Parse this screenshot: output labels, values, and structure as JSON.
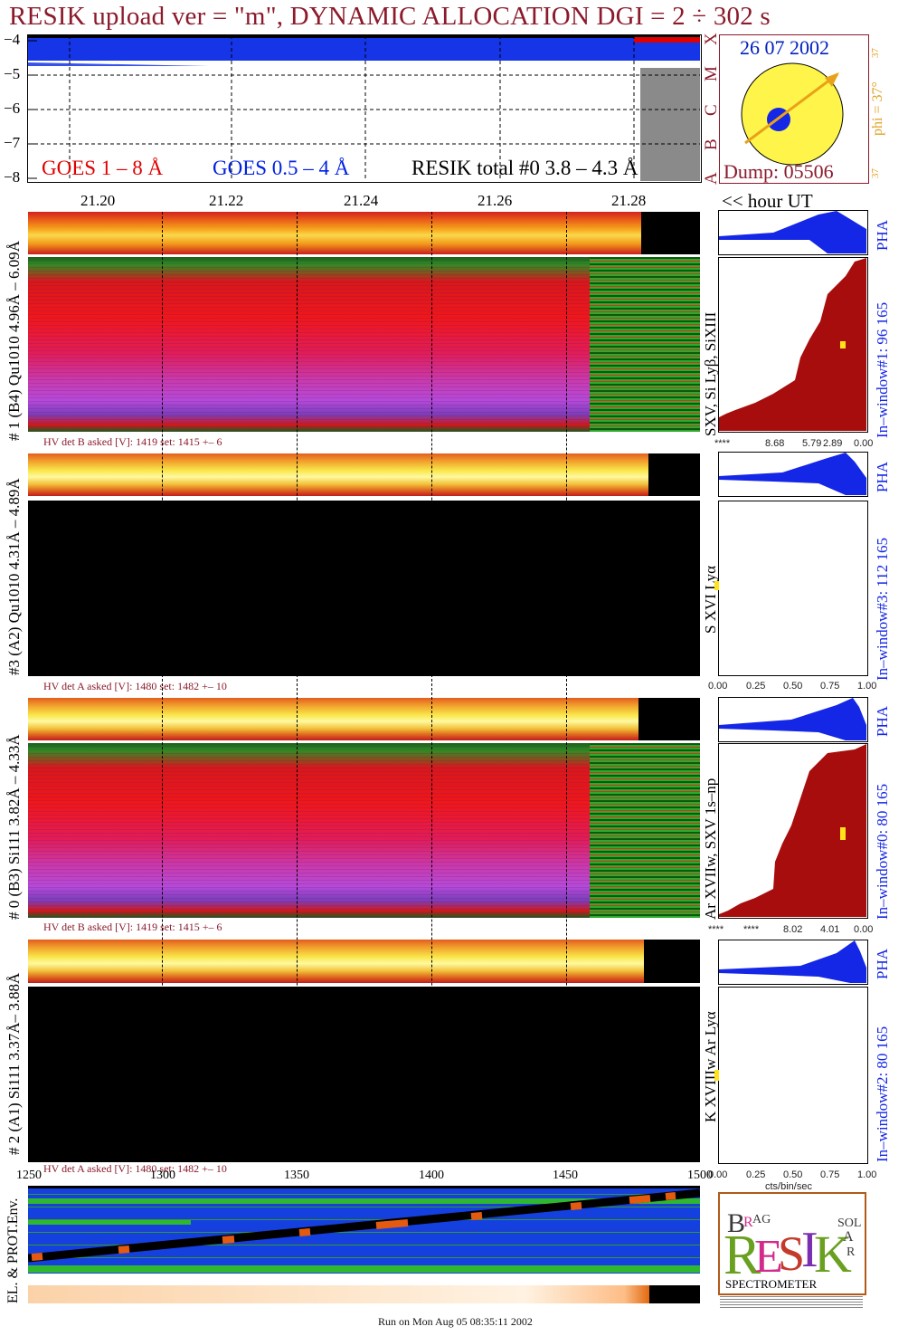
{
  "title": "RESIK upload ver = \"m\", DYNAMIC ALLOCATION  DGI =   2 ÷ 302 s",
  "top_panel": {
    "yticks": [
      "−4",
      "−5",
      "−6",
      "−7",
      "−8"
    ],
    "legend_goes1": "GOES 1 – 8 Å",
    "legend_goes05": "GOES 0.5 – 4 Å",
    "legend_resik": "RESIK total #0  3.8 – 4.3 Å",
    "flare_classes": [
      "X",
      "M",
      "C",
      "B",
      "A"
    ],
    "colors": {
      "goes1": "#e00000",
      "goes05": "#0020e0",
      "resik": "#000000"
    }
  },
  "sun_panel": {
    "date": "26 07 2002",
    "dump": "Dump: 05506",
    "phi_label": "phi = 37°",
    "phi_top": "37",
    "phi_bottom": "37"
  },
  "time_axis": {
    "ticks": [
      "21.20",
      "21.22",
      "21.24",
      "21.26",
      "21.28"
    ],
    "unit_label": "<< hour UT"
  },
  "channels": [
    {
      "label": "# 1 (B4) Qu1010 4.96Å – 6.09Å",
      "lines": "SXV, Si Lyβ, SiXIII",
      "hv": "HV det B asked [V]:  1419 set:  1415 +–   6",
      "pha": "PHA",
      "window": "In–window#1:  96 165",
      "xticks": [
        "****",
        "8.68",
        "5.79",
        "2.89",
        "0.00"
      ]
    },
    {
      "label": "#3 (A2) Qu1010  4.31Å – 4.89Å",
      "lines": "S XVI Lyα",
      "hv": "HV det A asked [V]:  1480 set:  1482 +–   10",
      "pha": "PHA",
      "window": "In–window#3:  112 165",
      "xticks": [
        "0.00",
        "0.25",
        "0.50",
        "0.75",
        "1.00"
      ]
    },
    {
      "label": "# 0 (B3) Si111  3.82Å – 4.33Å",
      "lines": "Ar XVIIw,  SXV 1s–np",
      "hv": "HV det B asked [V]:  1419 set:  1415 +–   6",
      "pha": "PHA",
      "window": "In–window#0:  80 165",
      "xticks": [
        "****",
        "****",
        "8.02",
        "4.01",
        "0.00"
      ]
    },
    {
      "label": "# 2 (A1) Si111  3.37Å–  3.88Å",
      "lines": "K XVIIIw  Ar Lyα",
      "hv": "HV det A asked [V]:  1480 set:  1482 +–   10",
      "pha": "PHA",
      "window": "In–window#2:  80 165",
      "xticks": [
        "0.00",
        "0.25",
        "0.50",
        "0.75",
        "1.00"
      ],
      "xunit": "cts/bin/sec"
    }
  ],
  "env_axis": {
    "ticks": [
      "1250",
      "1300",
      "1350",
      "1400",
      "1450",
      "1500"
    ],
    "label": "EL. & PROT.Env."
  },
  "logo": {
    "letters": "RESIK",
    "top": "BRAG",
    "right": "SOLAR",
    "bottom": "SPECTROMETER"
  },
  "footer": "Run on Mon Aug 05 08:35:11 2002"
}
